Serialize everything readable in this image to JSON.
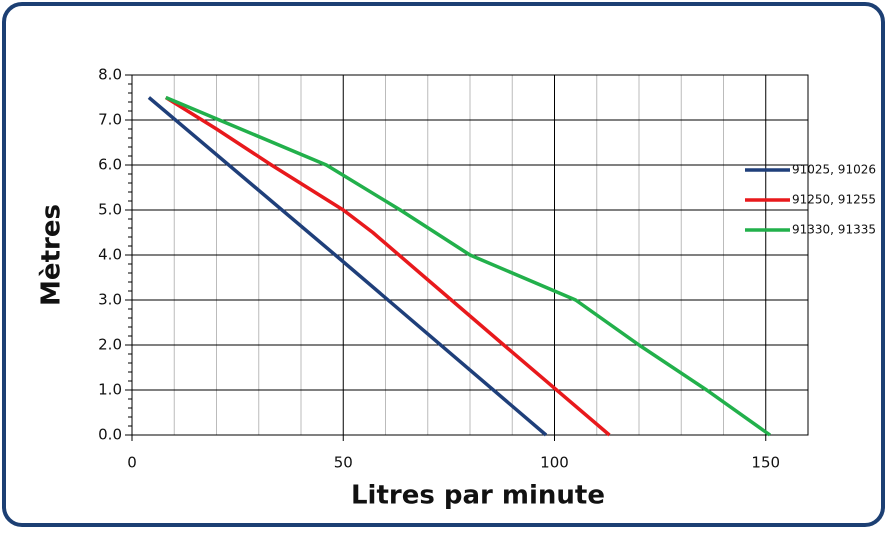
{
  "chart_data": {
    "type": "line",
    "xlabel": "Litres par minute",
    "ylabel": "Mètres",
    "xlim": [
      0,
      160
    ],
    "ylim": [
      0,
      8
    ],
    "xticks": [
      0,
      50,
      100,
      150
    ],
    "yticks": [
      {
        "value": 0,
        "label": "0.0"
      },
      {
        "value": 1,
        "label": "1.0"
      },
      {
        "value": 2,
        "label": "2.0"
      },
      {
        "value": 3,
        "label": "3.0"
      },
      {
        "value": 4,
        "label": "4.0"
      },
      {
        "value": 5,
        "label": "5.0"
      },
      {
        "value": 6,
        "label": "6.0"
      },
      {
        "value": 7,
        "label": "7.0"
      },
      {
        "value": 8,
        "label": "8.0"
      }
    ],
    "grid": true,
    "legend": "right",
    "series": [
      {
        "name": "91025, 91026",
        "color": "#1f3f7a",
        "x": [
          4,
          50,
          98
        ],
        "values": [
          7.5,
          3.85,
          0
        ]
      },
      {
        "name": "91250, 91255",
        "color": "#e8191c",
        "x": [
          8,
          20,
          33,
          50,
          57,
          70,
          88,
          113
        ],
        "values": [
          7.5,
          6.8,
          6.0,
          5.0,
          4.5,
          3.45,
          2.0,
          0
        ]
      },
      {
        "name": "91330, 91335",
        "color": "#22b04b",
        "x": [
          8,
          46,
          63.5,
          80,
          105,
          120,
          136,
          151
        ],
        "values": [
          7.5,
          6.0,
          5.0,
          4.0,
          3.0,
          2.0,
          1.0,
          0
        ]
      }
    ]
  }
}
